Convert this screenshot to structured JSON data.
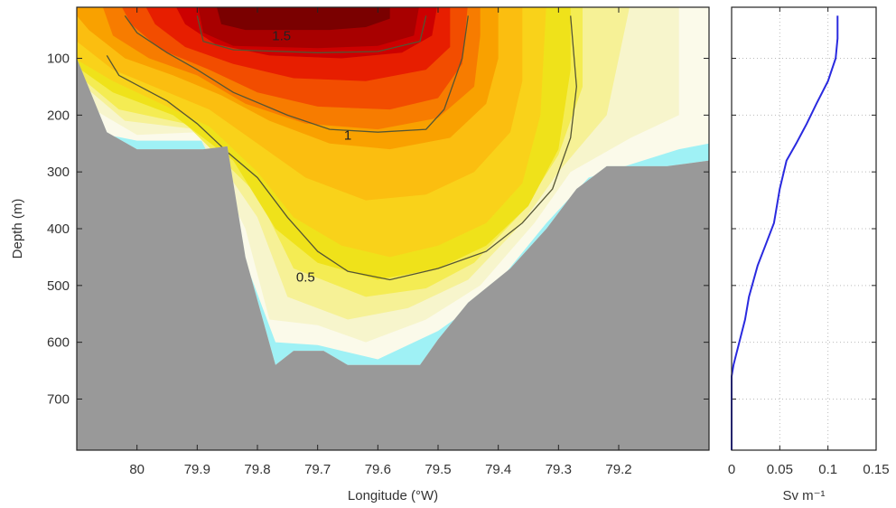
{
  "chart_data": [
    {
      "type": "heatmap",
      "description": "filled contour section",
      "xlabel": "Longitude (°W)",
      "ylabel": "Depth (m)",
      "xlim": [
        80.1,
        79.05
      ],
      "ylim": [
        790,
        10
      ],
      "x_reversed": true,
      "y_reversed": true,
      "xticks": [
        80,
        79.9,
        79.8,
        79.7,
        79.6,
        79.5,
        79.4,
        79.3,
        79.2
      ],
      "xtick_labels": [
        "80",
        "79.9",
        "79.8",
        "79.7",
        "79.6",
        "79.5",
        "79.4",
        "79.3",
        "79.2"
      ],
      "yticks": [
        100,
        200,
        300,
        400,
        500,
        600,
        700
      ],
      "ytick_labels": [
        "100",
        "200",
        "300",
        "400",
        "500",
        "600",
        "700"
      ],
      "contour_lines": [
        {
          "level": 1.5,
          "label": "1.5",
          "points": [
            [
              79.9,
              25
            ],
            [
              79.89,
              70
            ],
            [
              79.84,
              85
            ],
            [
              79.7,
              90
            ],
            [
              79.6,
              88
            ],
            [
              79.53,
              70
            ],
            [
              79.52,
              25
            ]
          ]
        },
        {
          "level": 1,
          "label": "1",
          "points": [
            [
              80.02,
              25
            ],
            [
              80.0,
              55
            ],
            [
              79.95,
              90
            ],
            [
              79.9,
              120
            ],
            [
              79.84,
              160
            ],
            [
              79.75,
              200
            ],
            [
              79.68,
              225
            ],
            [
              79.6,
              230
            ],
            [
              79.52,
              225
            ],
            [
              79.49,
              190
            ],
            [
              79.46,
              100
            ],
            [
              79.45,
              25
            ]
          ]
        },
        {
          "level": 0.5,
          "label": "0.5",
          "points": [
            [
              80.05,
              95
            ],
            [
              80.03,
              130
            ],
            [
              79.95,
              175
            ],
            [
              79.9,
              215
            ],
            [
              79.85,
              265
            ],
            [
              79.8,
              310
            ],
            [
              79.75,
              380
            ],
            [
              79.7,
              440
            ],
            [
              79.65,
              475
            ],
            [
              79.58,
              490
            ],
            [
              79.5,
              470
            ],
            [
              79.42,
              440
            ],
            [
              79.36,
              390
            ],
            [
              79.31,
              330
            ],
            [
              79.28,
              240
            ],
            [
              79.27,
              150
            ],
            [
              79.28,
              25
            ]
          ]
        }
      ],
      "contour_labels": [
        {
          "text": "1.5",
          "x": 79.76,
          "y": 60
        },
        {
          "text": "1",
          "x": 79.65,
          "y": 235
        },
        {
          "text": "0.5",
          "x": 79.72,
          "y": 485
        }
      ],
      "bathymetry": [
        [
          80.1,
          100
        ],
        [
          80.05,
          230
        ],
        [
          80.0,
          260
        ],
        [
          79.89,
          260
        ],
        [
          79.85,
          255
        ],
        [
          79.82,
          450
        ],
        [
          79.77,
          640
        ],
        [
          79.74,
          615
        ],
        [
          79.69,
          615
        ],
        [
          79.65,
          640
        ],
        [
          79.53,
          640
        ],
        [
          79.5,
          595
        ],
        [
          79.45,
          530
        ],
        [
          79.38,
          470
        ],
        [
          79.32,
          400
        ],
        [
          79.27,
          330
        ],
        [
          79.22,
          290
        ],
        [
          79.12,
          290
        ],
        [
          79.05,
          280
        ],
        [
          79.05,
          790
        ],
        [
          80.1,
          790
        ]
      ],
      "colors": {
        "land": "#999999",
        "levels": [
          "#7a0000",
          "#a80000",
          "#cc0000",
          "#e71e00",
          "#f24d00",
          "#f77c00",
          "#f9a100",
          "#fbbe10",
          "#f9d21a",
          "#efe21a",
          "#f4ec53",
          "#f6f196",
          "#f7f5cc",
          "#fbfaea"
        ],
        "cyan_fringe": "#9ff1f5",
        "contour_line": "#555533"
      }
    },
    {
      "type": "line",
      "xlabel": "Sv m⁻¹",
      "xlim": [
        0,
        0.15
      ],
      "ylim": [
        790,
        10
      ],
      "y_reversed": true,
      "xticks": [
        0,
        0.05,
        0.1,
        0.15
      ],
      "xtick_labels": [
        "0",
        "0.05",
        "0.1",
        "0.15"
      ],
      "grid": true,
      "series": [
        {
          "color": "#2a2adf",
          "x": [
            0.11,
            0.11,
            0.108,
            0.1,
            0.088,
            0.078,
            0.067,
            0.057,
            0.05,
            0.044,
            0.035,
            0.027,
            0.018,
            0.014,
            0.008,
            0.002,
            0,
            0
          ],
          "y": [
            25,
            65,
            100,
            140,
            180,
            215,
            250,
            280,
            330,
            390,
            430,
            465,
            520,
            560,
            600,
            640,
            660,
            790
          ]
        }
      ]
    }
  ]
}
